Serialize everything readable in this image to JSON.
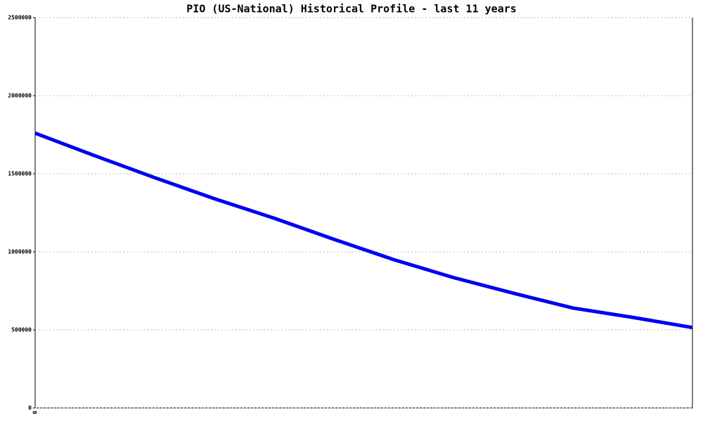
{
  "chart_data": {
    "type": "line",
    "title": "PIO (US-National) Historical Profile - last 11 years",
    "categories": [
      "0",
      null,
      null,
      null,
      null,
      null,
      null,
      null,
      null,
      null,
      null,
      null
    ],
    "series": [
      {
        "color": "#0000ee",
        "values": [
          1760000,
          1615000,
          1475000,
          1340000,
          1215000,
          1080000,
          950000,
          835000,
          735000,
          640000,
          580000,
          515000
        ]
      }
    ],
    "ylim": [
      0,
      2500000
    ],
    "yticks": [
      0,
      500000,
      1000000,
      1500000,
      2000000,
      2500000
    ],
    "grid": true
  }
}
